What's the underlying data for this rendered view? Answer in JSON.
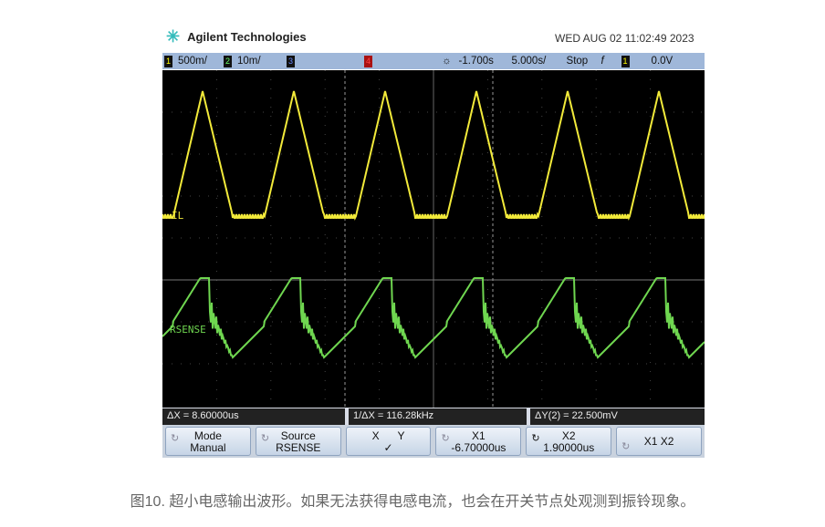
{
  "header": {
    "brand": "Agilent Technologies",
    "datetime": "WED AUG 02 11:02:49 2023"
  },
  "topbar": {
    "ch1_num": "1",
    "ch1_scale": "500m/",
    "ch2_num": "2",
    "ch2_scale": "10m/",
    "ch3_num": "3",
    "ch4_num": "4",
    "delay": "-1.700s",
    "timebase": "5.000s/",
    "run_state": "Stop",
    "trigger_edge": "f",
    "trig_ch": "1",
    "trig_level": "0.0V"
  },
  "channels": {
    "ch1_label": "IL",
    "ch2_label": "RSENSE",
    "ch1_color": "#f2ea3a",
    "ch2_color": "#6fd650"
  },
  "readout": {
    "dx": "ΔX = 8.60000us",
    "inv_dx": "1/ΔX = 116.28kHz",
    "dy": "ΔY(2) = 22.500mV"
  },
  "softkeys": [
    {
      "line1": "Mode",
      "line2": "Manual"
    },
    {
      "line1": "Source",
      "line2": "RSENSE"
    },
    {
      "line1": "X      Y",
      "line2": "✓"
    },
    {
      "line1": "X1",
      "line2": "-6.70000us"
    },
    {
      "line1": "X2",
      "line2": "1.90000us"
    },
    {
      "line1": "X1 X2",
      "line2": ""
    }
  ],
  "caption": "图10. 超小电感输出波形。如果无法获得电感电流，也会在开关节点处观测到振铃现象。"
}
